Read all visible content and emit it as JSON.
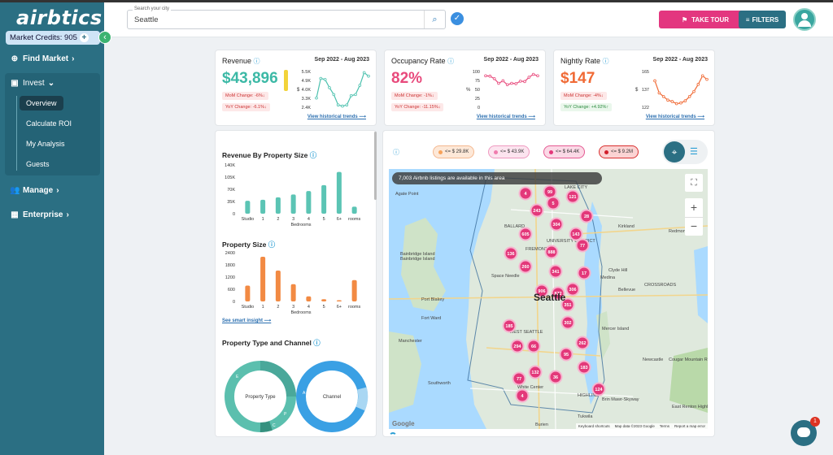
{
  "sidebar": {
    "logo": "airbtics",
    "credits_label": "Market Credits: 905",
    "nav": {
      "find_market": "Find Market",
      "invest": "Invest",
      "overview": "Overview",
      "calculate_roi": "Calculate ROI",
      "my_analysis": "My Analysis",
      "guests": "Guests",
      "manage": "Manage",
      "enterprise": "Enterprise"
    }
  },
  "topbar": {
    "search_label": "Search your city",
    "search_value": "Seattle",
    "take_tour": "TAKE TOUR",
    "filters": "FILTERS"
  },
  "kpis": {
    "revenue": {
      "title": "Revenue",
      "range": "Sep 2022 - Aug 2023",
      "value": "$43,896",
      "mom": "MoM Change: -6%↓",
      "yoy": "YoY Change: -6.1%↓",
      "link": "View historical trends ⟶",
      "y_ticks": [
        "5.5K",
        "4.9K",
        "4.0K",
        "3.3K",
        "2.4K"
      ],
      "y_unit": "$",
      "trend": [
        3.2,
        4.9,
        4.8,
        4.1,
        3.5,
        2.6,
        2.5,
        2.6,
        3.4,
        3.5,
        4.3,
        5.4,
        5.1
      ]
    },
    "occupancy": {
      "title": "Occupancy Rate",
      "range": "Sep 2022 - Aug 2023",
      "value": "82%",
      "mom": "MoM Change: -1%↓",
      "yoy": "YoY Change: -11.15%↓",
      "link": "View historical trends ⟶",
      "y_ticks": [
        "100",
        "75",
        "50",
        "25",
        "0"
      ],
      "y_unit": "%",
      "trend": [
        88,
        87,
        80,
        67,
        74,
        63,
        67,
        66,
        73,
        72,
        84,
        92,
        88
      ]
    },
    "nightly": {
      "title": "Nightly Rate",
      "range": "Sep 2022 - Aug 2023",
      "value": "$147",
      "mom": "MoM Change: -4%↓",
      "yoy": "YoY Change: +4.92%↑",
      "link": "View historical trends ⟶",
      "y_ticks": [
        "165",
        "137",
        "122"
      ],
      "y_unit": "$",
      "trend": [
        155,
        138,
        133,
        128,
        126,
        123,
        124,
        127,
        133,
        140,
        150,
        162,
        157
      ]
    }
  },
  "revenue_by_size": {
    "title": "Revenue By Property Size",
    "xlabel": "Bedrooms",
    "categories": [
      "Studio",
      "1",
      "2",
      "3",
      "4",
      "5",
      "6+",
      "rooms"
    ],
    "y_ticks": [
      "140K",
      "105K",
      "70K",
      "35K",
      "0"
    ],
    "values": [
      37000,
      40000,
      47000,
      55000,
      65000,
      82000,
      120000,
      20000
    ]
  },
  "property_size": {
    "title": "Property Size",
    "xlabel": "Bedrooms",
    "categories": [
      "Studio",
      "1",
      "2",
      "3",
      "4",
      "5",
      "6+",
      "rooms"
    ],
    "y_ticks": [
      "2400",
      "1800",
      "1200",
      "600",
      "0"
    ],
    "values": [
      780,
      2200,
      1520,
      850,
      250,
      110,
      60,
      1050
    ]
  },
  "smart_insight": "See smart insight ⟶",
  "type_channel": {
    "title": "Property Type and Channel",
    "donut1_label": "Property Type",
    "donut2_label": "Channel"
  },
  "map": {
    "pills": [
      "<= $ 29.8K",
      "<= $ 43.9K",
      "<= $ 64.4K",
      "<= $ 9.2M"
    ],
    "listings_banner": "7,003 Airbnb listings are available in this area",
    "city": "Seattle",
    "places": [
      "Agate Point",
      "Bainbridge Island",
      "Bainbridge Island",
      "Port Blakey",
      "Fort Ward",
      "Manchester",
      "Southworth",
      "Kirkland",
      "Redmond",
      "Clyde Hill",
      "Medina",
      "Bellevue",
      "CROSSROADS",
      "Mercer Island",
      "Newcastle",
      "Cougar Mountain Regional Wildland Park",
      "East Renton Highlands",
      "Brin Mawr-Skyway",
      "Tukwila",
      "White Center",
      "Burien",
      "WEST SEATTLE",
      "Space Needle",
      "LAKE CITY",
      "FREMONT",
      "BALLARD",
      "UNIVERSITY DISTRICT",
      "HIGHLINE"
    ],
    "clusters": [
      "4",
      "99",
      "121",
      "5",
      "243",
      "28",
      "304",
      "605",
      "143",
      "888",
      "77",
      "136",
      "260",
      "341",
      "17",
      "906",
      "872",
      "306",
      "351",
      "185",
      "302",
      "294",
      "66",
      "262",
      "95",
      "183",
      "77",
      "132",
      "36",
      "4",
      "124"
    ],
    "footer": [
      "Keyboard shortcuts",
      "Map data ©2023 Google",
      "Terms",
      "Report a map error"
    ],
    "google": "Google"
  }
}
